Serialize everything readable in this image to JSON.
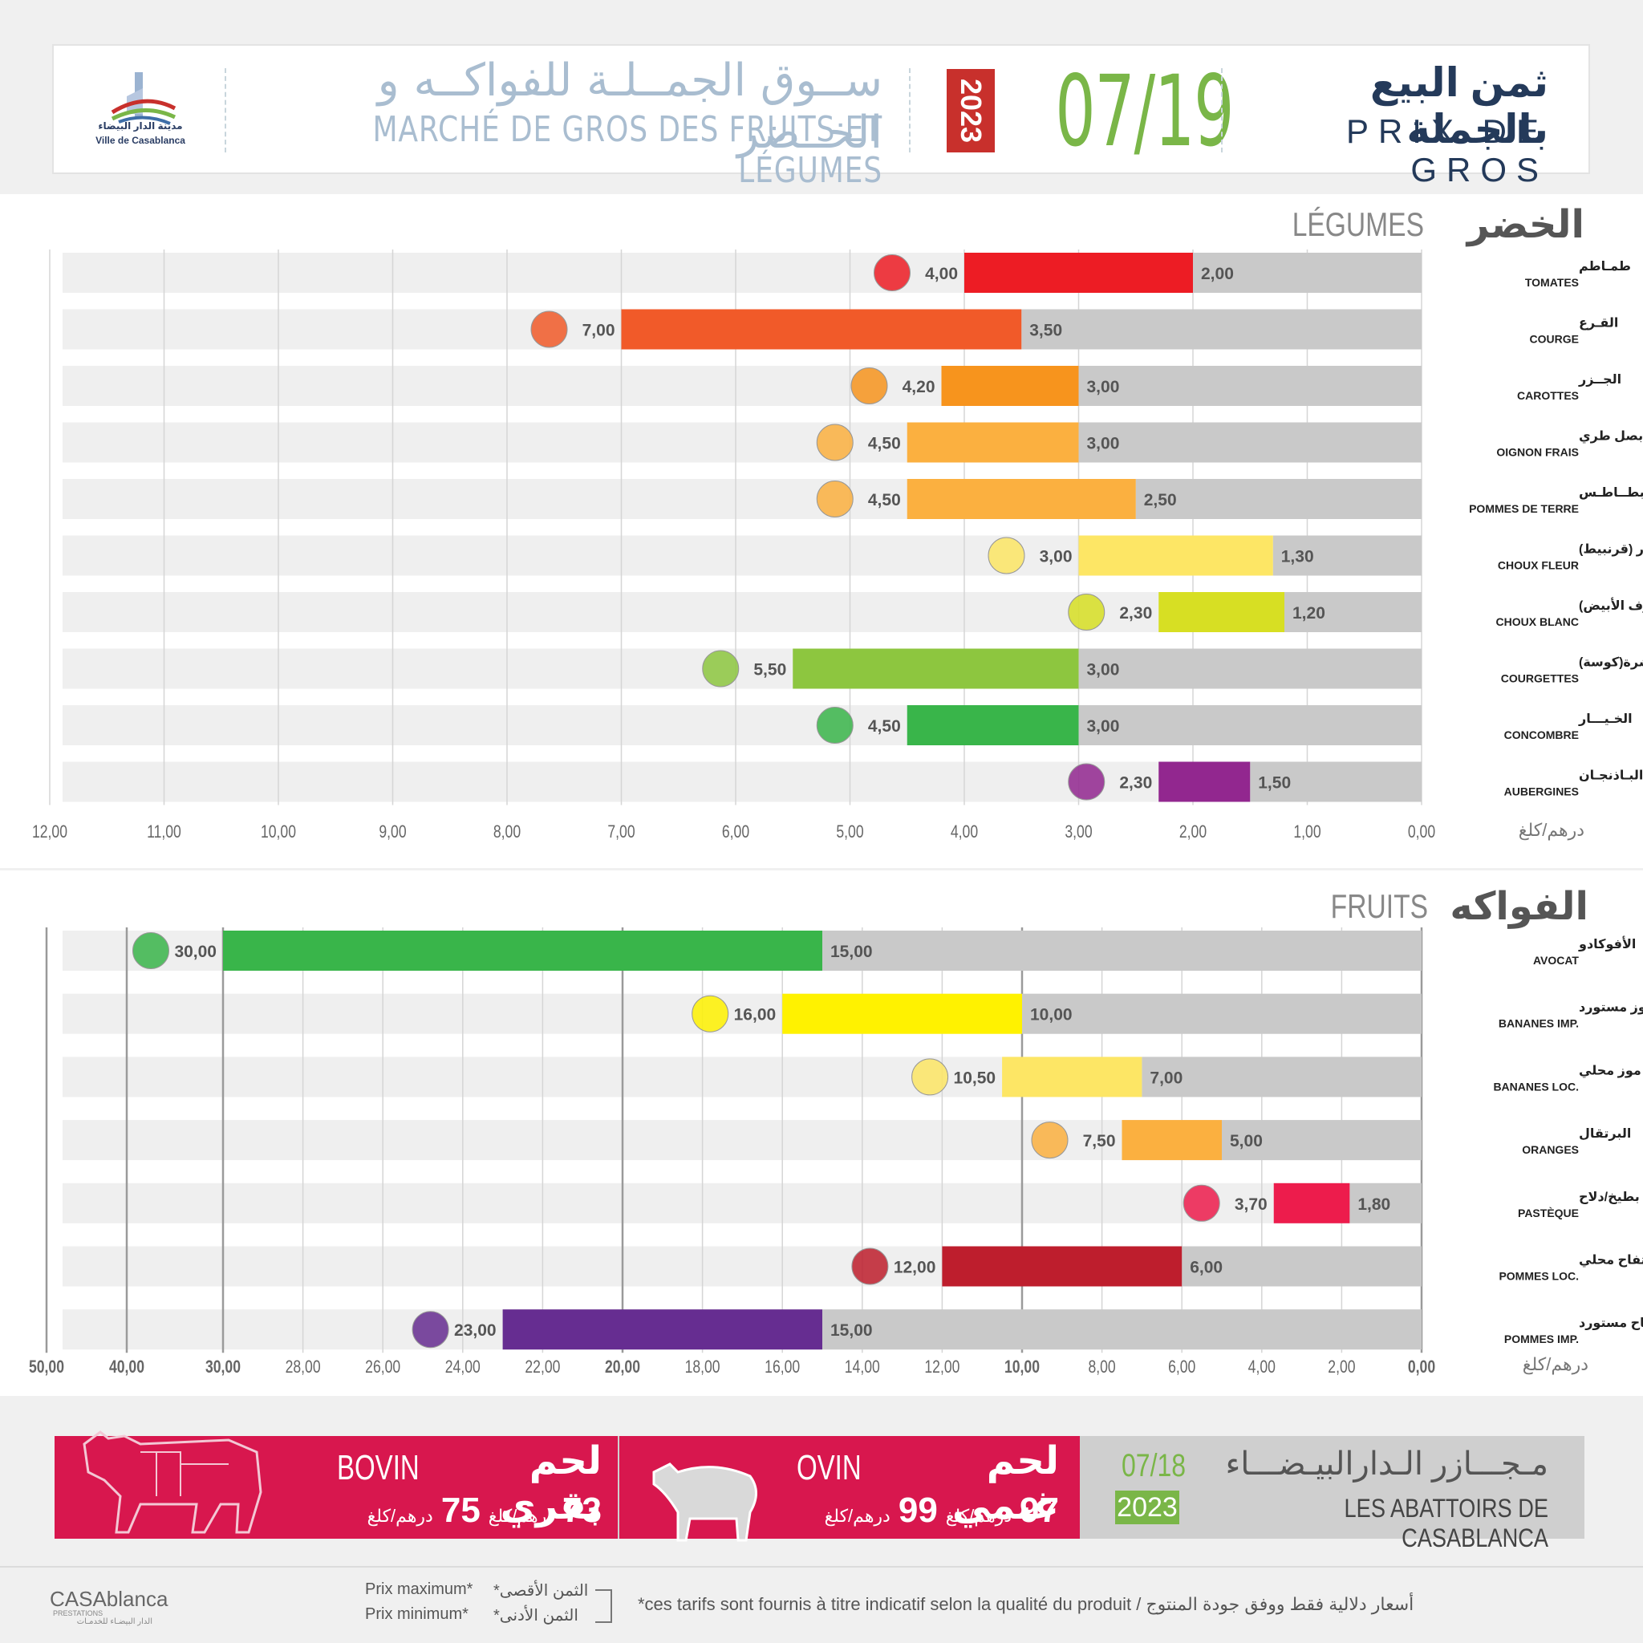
{
  "header": {
    "logo_ar": "مدينة الدار البيضاء",
    "logo_fr": "Ville de Casablanca",
    "market_ar": "ســوق الجمــلـة للفواكــه و الخــضر",
    "market_fr": "MARCHÉ DE GROS DES FRUITS ET LÉGUMES",
    "year": "2023",
    "date": "07/19",
    "price_ar": "ثمن البيع بالجملة",
    "price_fr": "PRIX DE GROS"
  },
  "vegetables": {
    "title_ar": "الخضر",
    "title_fr": "LÉGUMES",
    "unit": "درهم/كلغ"
  },
  "fruits": {
    "title_ar": "الفواكه",
    "title_fr": "FRUITS",
    "unit": "درهم/كلغ"
  },
  "chart_data": [
    {
      "type": "bar",
      "orientation": "horizontal-reversed",
      "title": "LÉGUMES",
      "xlim": [
        0,
        12
      ],
      "ticks": [
        "12,00",
        "11,00",
        "10,00",
        "9,00",
        "8,00",
        "7,00",
        "6,00",
        "5,00",
        "4,00",
        "3,00",
        "2,00",
        "1,00",
        "0,00"
      ],
      "tick_values": [
        12,
        11,
        10,
        9,
        8,
        7,
        6,
        5,
        4,
        3,
        2,
        1,
        0
      ],
      "categories_ar": [
        "طمـاطم",
        "القـرع",
        "الجــزر",
        "بصل طري",
        "بطــاطـس",
        "شفلـور (قرنبيط)",
        "كرومب (الملفوف الأبيض)",
        "قرعة خضرة(كوسة)",
        "الخـيـــار",
        "البـاذنجـان"
      ],
      "categories": [
        "TOMATES",
        "COURGE",
        "CAROTTES",
        "OIGNON FRAIS",
        "POMMES DE TERRE",
        "CHOUX FLEUR",
        "CHOUX BLANC",
        "COURGETTES",
        "CONCOMBRE",
        "AUBERGINES"
      ],
      "series": [
        {
          "name": "Prix minimum",
          "values": [
            2.0,
            3.5,
            3.0,
            3.0,
            2.5,
            1.3,
            1.2,
            3.0,
            3.0,
            1.5
          ],
          "labels": [
            "2,00",
            "3,50",
            "3,00",
            "3,00",
            "2,50",
            "1,30",
            "1,20",
            "3,00",
            "3,00",
            "1,50"
          ]
        },
        {
          "name": "Prix maximum",
          "values": [
            4.0,
            7.0,
            4.2,
            4.5,
            4.5,
            3.0,
            2.3,
            5.5,
            4.5,
            2.3
          ],
          "labels": [
            "4,00",
            "7,00",
            "4,20",
            "4,50",
            "4,50",
            "3,00",
            "2,30",
            "5,50",
            "4,50",
            "2,30"
          ]
        }
      ],
      "colors": [
        "#ed1c24",
        "#f15a29",
        "#f7941d",
        "#fbb040",
        "#fbb040",
        "#fde665",
        "#d7df23",
        "#8dc63f",
        "#39b54a",
        "#92278f"
      ]
    },
    {
      "type": "bar",
      "orientation": "horizontal-reversed",
      "title": "FRUITS",
      "xlim": [
        0,
        50
      ],
      "ticks": [
        "50,00",
        "40,00",
        "30,00",
        "28,00",
        "26,00",
        "24,00",
        "22,00",
        "20,00",
        "18,00",
        "16,00",
        "14,00",
        "12,00",
        "10,00",
        "8,00",
        "6,00",
        "4,00",
        "2,00",
        "0,00"
      ],
      "tick_values": [
        50,
        40,
        30,
        28,
        26,
        24,
        22,
        20,
        18,
        16,
        14,
        12,
        10,
        8,
        6,
        4,
        2,
        0
      ],
      "categories_ar": [
        "الأفوكادو",
        "موز مستورد",
        "موز محلي",
        "البرتقال",
        "بطيخ/دلاح",
        "تفاح محلي",
        "تفاح مستورد"
      ],
      "categories": [
        "AVOCAT",
        "BANANES IMP.",
        "BANANES LOC.",
        "ORANGES",
        "PASTÈQUE",
        "POMMES LOC.",
        "POMMES IMP."
      ],
      "series": [
        {
          "name": "Prix minimum",
          "values": [
            15.0,
            10.0,
            7.0,
            5.0,
            1.8,
            6.0,
            15.0
          ],
          "labels": [
            "15,00",
            "10,00",
            "7,00",
            "5,00",
            "1,80",
            "6,00",
            "15,00"
          ]
        },
        {
          "name": "Prix maximum",
          "values": [
            30.0,
            16.0,
            10.5,
            7.5,
            3.7,
            12.0,
            23.0
          ],
          "labels": [
            "30,00",
            "16,00",
            "10,50",
            "7,50",
            "3,70",
            "12,00",
            "23,00"
          ]
        }
      ],
      "colors": [
        "#39b54a",
        "#fff200",
        "#fde665",
        "#fbb040",
        "#ed1c4c",
        "#be1e2d",
        "#662d91"
      ]
    }
  ],
  "meat": {
    "bovin_fr": "BOVIN",
    "bovin_ar": "لحم بقري",
    "bovin_min": "73",
    "bovin_max": "75",
    "ovin_fr": "OVIN",
    "ovin_ar": "لحم غنمي",
    "ovin_min": "97",
    "ovin_max": "99",
    "unit": "درهم/كلغ",
    "date": "07/18",
    "year": "2023",
    "abattoirs_ar": "مـجـــازر الـدارالبيـضـــاء",
    "abattoirs_fr": "LES ABATTOIRS DE CASABLANCA"
  },
  "footer": {
    "brand": "CASAblanca",
    "brand_sub": "PRESTATIONS",
    "brand_ar": "الدار البيضـاء للخدمـات",
    "legend_max_fr": "Prix maximum*",
    "legend_min_fr": "Prix minimum*",
    "legend_max_ar": "الثمن الأقصى*",
    "legend_min_ar": "الثمن الأدنى*",
    "note": "*ces tarifs sont fournis à titre indicatif selon la qualité du produit  /  أسعار دلالية فقط ووفق جودة المنتوج"
  }
}
